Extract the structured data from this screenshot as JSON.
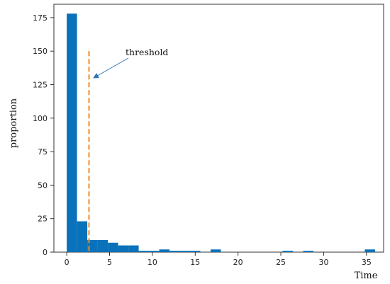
{
  "chart_data": {
    "type": "bar",
    "xlabel": "Time",
    "ylabel": "proportion",
    "xlim": [
      -1.5,
      37
    ],
    "ylim": [
      0,
      185
    ],
    "xticks": [
      0,
      5,
      10,
      15,
      20,
      25,
      30,
      35
    ],
    "yticks": [
      0,
      25,
      50,
      75,
      100,
      125,
      150,
      175
    ],
    "bin_width": 1.2,
    "bins": [
      {
        "x0": 0.0,
        "x1": 1.2,
        "value": 178
      },
      {
        "x0": 1.2,
        "x1": 2.4,
        "value": 23
      },
      {
        "x0": 2.4,
        "x1": 3.6,
        "value": 9
      },
      {
        "x0": 3.6,
        "x1": 4.8,
        "value": 9
      },
      {
        "x0": 4.8,
        "x1": 6.0,
        "value": 7
      },
      {
        "x0": 6.0,
        "x1": 7.2,
        "value": 5
      },
      {
        "x0": 7.2,
        "x1": 8.4,
        "value": 5
      },
      {
        "x0": 8.4,
        "x1": 9.6,
        "value": 1
      },
      {
        "x0": 9.6,
        "x1": 10.8,
        "value": 1
      },
      {
        "x0": 10.8,
        "x1": 12.0,
        "value": 2
      },
      {
        "x0": 12.0,
        "x1": 13.2,
        "value": 1
      },
      {
        "x0": 13.2,
        "x1": 14.4,
        "value": 1
      },
      {
        "x0": 14.4,
        "x1": 15.6,
        "value": 1
      },
      {
        "x0": 16.8,
        "x1": 18.0,
        "value": 2
      },
      {
        "x0": 25.2,
        "x1": 26.4,
        "value": 1
      },
      {
        "x0": 27.6,
        "x1": 28.8,
        "value": 1
      },
      {
        "x0": 34.8,
        "x1": 36.0,
        "value": 2
      }
    ],
    "bar_color": "#0a72ba",
    "threshold": {
      "label": "threshold",
      "x": 2.6,
      "y_range": [
        0,
        150
      ],
      "color": "#f08a24"
    },
    "grid": false,
    "legend": "none"
  }
}
